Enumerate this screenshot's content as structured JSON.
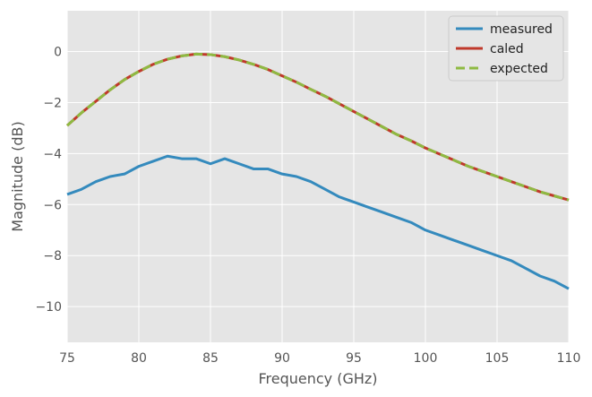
{
  "chart_data": {
    "type": "line",
    "title": "",
    "xlabel": "Frequency (GHz)",
    "ylabel": "Magnitude (dB)",
    "xlim": [
      75,
      110
    ],
    "ylim": [
      -11.4,
      1.6
    ],
    "xticks": [
      75,
      80,
      85,
      90,
      95,
      100,
      105,
      110
    ],
    "xtick_labels": [
      "75",
      "80",
      "85",
      "90",
      "95",
      "100",
      "105",
      "110"
    ],
    "yticks": [
      0,
      -2,
      -4,
      -6,
      -8,
      -10
    ],
    "ytick_labels": [
      "0",
      "−2",
      "−4",
      "−6",
      "−8",
      "−10"
    ],
    "grid": true,
    "legend_position": "top-right",
    "x": [
      75,
      76,
      77,
      78,
      79,
      80,
      81,
      82,
      83,
      84,
      85,
      86,
      87,
      88,
      89,
      90,
      91,
      92,
      93,
      94,
      95,
      96,
      97,
      98,
      99,
      100,
      101,
      102,
      103,
      104,
      105,
      106,
      107,
      108,
      109,
      110
    ],
    "series": [
      {
        "name": "measured",
        "color": "#348abd",
        "dash": "solid",
        "values": [
          -5.6,
          -5.4,
          -5.1,
          -4.9,
          -4.8,
          -4.5,
          -4.3,
          -4.1,
          -4.2,
          -4.2,
          -4.4,
          -4.2,
          -4.4,
          -4.6,
          -4.6,
          -4.8,
          -4.9,
          -5.1,
          -5.4,
          -5.7,
          -5.9,
          -6.1,
          -6.3,
          -6.5,
          -6.7,
          -7.0,
          -7.2,
          -7.4,
          -7.6,
          -7.8,
          -8.0,
          -8.2,
          -8.5,
          -8.8,
          -9.0,
          -9.3
        ]
      },
      {
        "name": "caled",
        "color": "#c0392b",
        "dash": "solid",
        "values": [
          -2.9,
          -2.4,
          -1.95,
          -1.5,
          -1.1,
          -0.78,
          -0.5,
          -0.3,
          -0.17,
          -0.1,
          -0.12,
          -0.2,
          -0.33,
          -0.5,
          -0.7,
          -0.95,
          -1.2,
          -1.48,
          -1.75,
          -2.05,
          -2.35,
          -2.65,
          -2.95,
          -3.25,
          -3.5,
          -3.78,
          -4.02,
          -4.26,
          -4.5,
          -4.7,
          -4.9,
          -5.1,
          -5.3,
          -5.5,
          -5.66,
          -5.82
        ]
      },
      {
        "name": "expected",
        "color": "#8eba42",
        "dash": "dashed",
        "values": [
          -2.9,
          -2.4,
          -1.95,
          -1.5,
          -1.1,
          -0.78,
          -0.5,
          -0.3,
          -0.17,
          -0.1,
          -0.12,
          -0.2,
          -0.33,
          -0.5,
          -0.7,
          -0.95,
          -1.2,
          -1.48,
          -1.75,
          -2.05,
          -2.35,
          -2.65,
          -2.95,
          -3.25,
          -3.5,
          -3.78,
          -4.02,
          -4.26,
          -4.5,
          -4.7,
          -4.9,
          -5.1,
          -5.3,
          -5.5,
          -5.66,
          -5.82
        ]
      }
    ],
    "colors": {
      "plot_background": "#e5e5e5",
      "grid": "#ffffff",
      "legend_background": "#e5e5e5",
      "legend_border": "#cccccc"
    }
  }
}
